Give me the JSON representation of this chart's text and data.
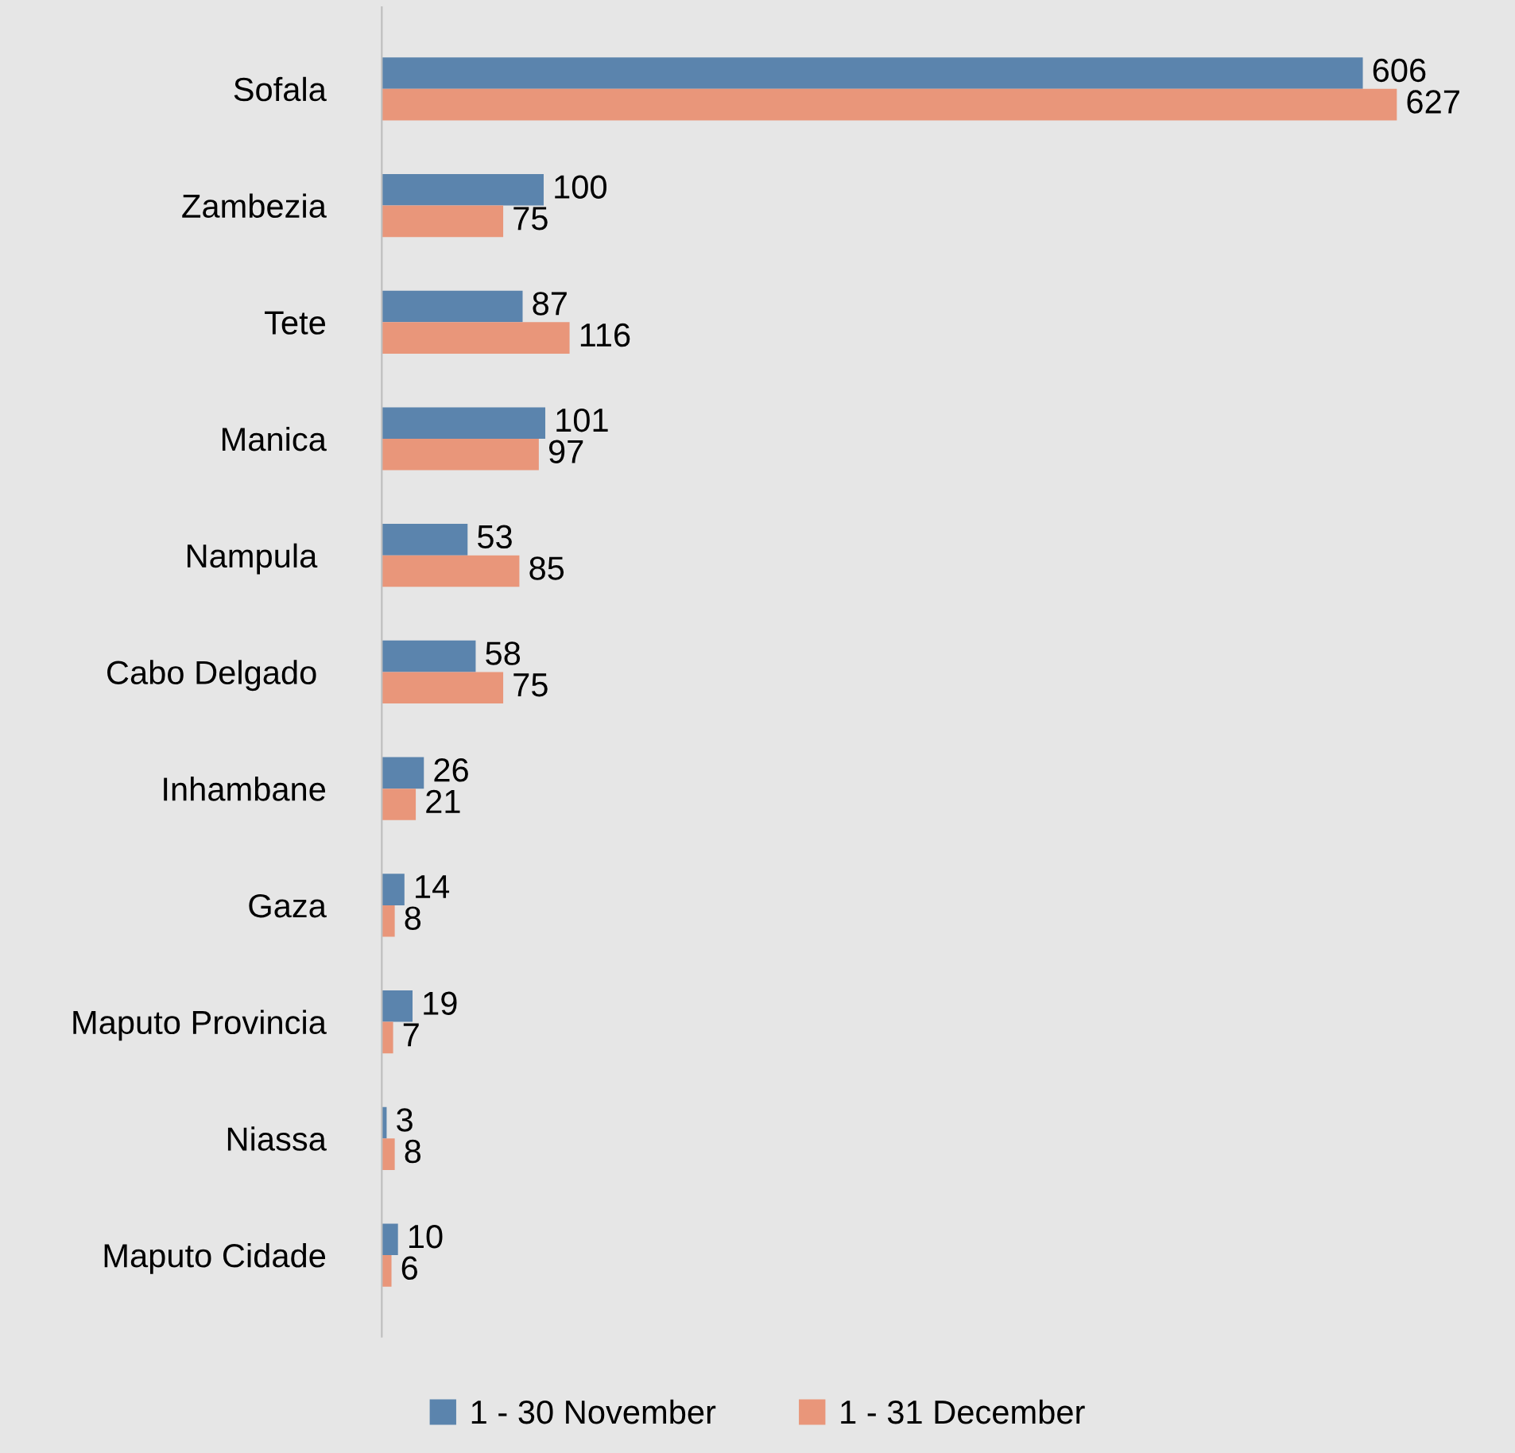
{
  "chart_data": {
    "type": "bar",
    "orientation": "horizontal",
    "categories": [
      "Sofala",
      "Zambezia",
      "Tete",
      "Manica",
      "Nampula ",
      "Cabo Delgado ",
      "Inhambane",
      "Gaza",
      "Maputo Provincia",
      "Niassa",
      "Maputo Cidade"
    ],
    "series": [
      {
        "name": "1 - 30 November",
        "color": "#5b84ad",
        "values": [
          606,
          100,
          87,
          101,
          53,
          58,
          26,
          14,
          19,
          3,
          10
        ]
      },
      {
        "name": "1 - 31 December",
        "color": "#e9967a",
        "values": [
          627,
          75,
          116,
          97,
          85,
          75,
          21,
          8,
          7,
          8,
          6
        ]
      }
    ],
    "xlim": [
      0,
      700
    ],
    "tick_labels": "y",
    "data_labels": true,
    "legend": "bottom",
    "grid": false
  }
}
